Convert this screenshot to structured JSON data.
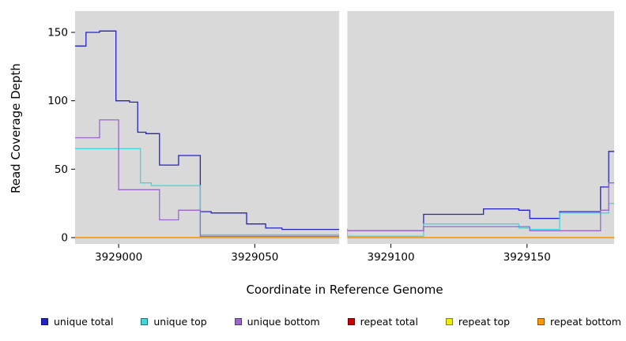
{
  "chart_data": {
    "type": "line",
    "subtype": "step",
    "title": "",
    "xlabel": "Coordinate in Reference Genome",
    "ylabel": "Read Coverage Depth",
    "x_range": [
      3928984,
      3929182
    ],
    "y_range": [
      0,
      164
    ],
    "x_ticks": [
      3929000,
      3929050,
      3929100,
      3929150
    ],
    "y_ticks": [
      0,
      50,
      100,
      150
    ],
    "gap_band": [
      3929081,
      3929084
    ],
    "plot_bg": "#d9d9d9",
    "gap_color": "#ffffff",
    "grid": false,
    "legend_position": "bottom",
    "series": [
      {
        "name": "unique total",
        "color": "#2222cc",
        "steps": [
          [
            3928984,
            140
          ],
          [
            3928988,
            150
          ],
          [
            3928993,
            151
          ],
          [
            3928999,
            100
          ],
          [
            3929004,
            99
          ],
          [
            3929007,
            77
          ],
          [
            3929010,
            76
          ],
          [
            3929015,
            53
          ],
          [
            3929022,
            60
          ],
          [
            3929030,
            19
          ],
          [
            3929034,
            18
          ],
          [
            3929047,
            10
          ],
          [
            3929054,
            7
          ],
          [
            3929060,
            6
          ],
          [
            3929084,
            5
          ],
          [
            3929112,
            17
          ],
          [
            3929134,
            21
          ],
          [
            3929147,
            20
          ],
          [
            3929151,
            14
          ],
          [
            3929162,
            19
          ],
          [
            3929177,
            37
          ],
          [
            3929180,
            63
          ]
        ]
      },
      {
        "name": "unique top",
        "color": "#3fd8d8",
        "steps": [
          [
            3928984,
            65
          ],
          [
            3929008,
            40
          ],
          [
            3929012,
            38
          ],
          [
            3929030,
            2
          ],
          [
            3929084,
            1
          ],
          [
            3929112,
            10
          ],
          [
            3929147,
            7
          ],
          [
            3929151,
            6
          ],
          [
            3929162,
            18
          ],
          [
            3929180,
            25
          ]
        ]
      },
      {
        "name": "unique bottom",
        "color": "#9966cc",
        "steps": [
          [
            3928984,
            73
          ],
          [
            3928993,
            86
          ],
          [
            3929000,
            35
          ],
          [
            3929015,
            13
          ],
          [
            3929022,
            20
          ],
          [
            3929030,
            1
          ],
          [
            3929084,
            5
          ],
          [
            3929112,
            8
          ],
          [
            3929147,
            8
          ],
          [
            3929151,
            5
          ],
          [
            3929162,
            5
          ],
          [
            3929177,
            20
          ],
          [
            3929180,
            40
          ]
        ]
      },
      {
        "name": "repeat total",
        "color": "#cc0000",
        "steps": [
          [
            3928984,
            0
          ]
        ]
      },
      {
        "name": "repeat top",
        "color": "#eded00",
        "steps": [
          [
            3928984,
            0
          ]
        ]
      },
      {
        "name": "repeat bottom",
        "color": "#ff9900",
        "steps": [
          [
            3928984,
            0
          ]
        ]
      }
    ]
  }
}
